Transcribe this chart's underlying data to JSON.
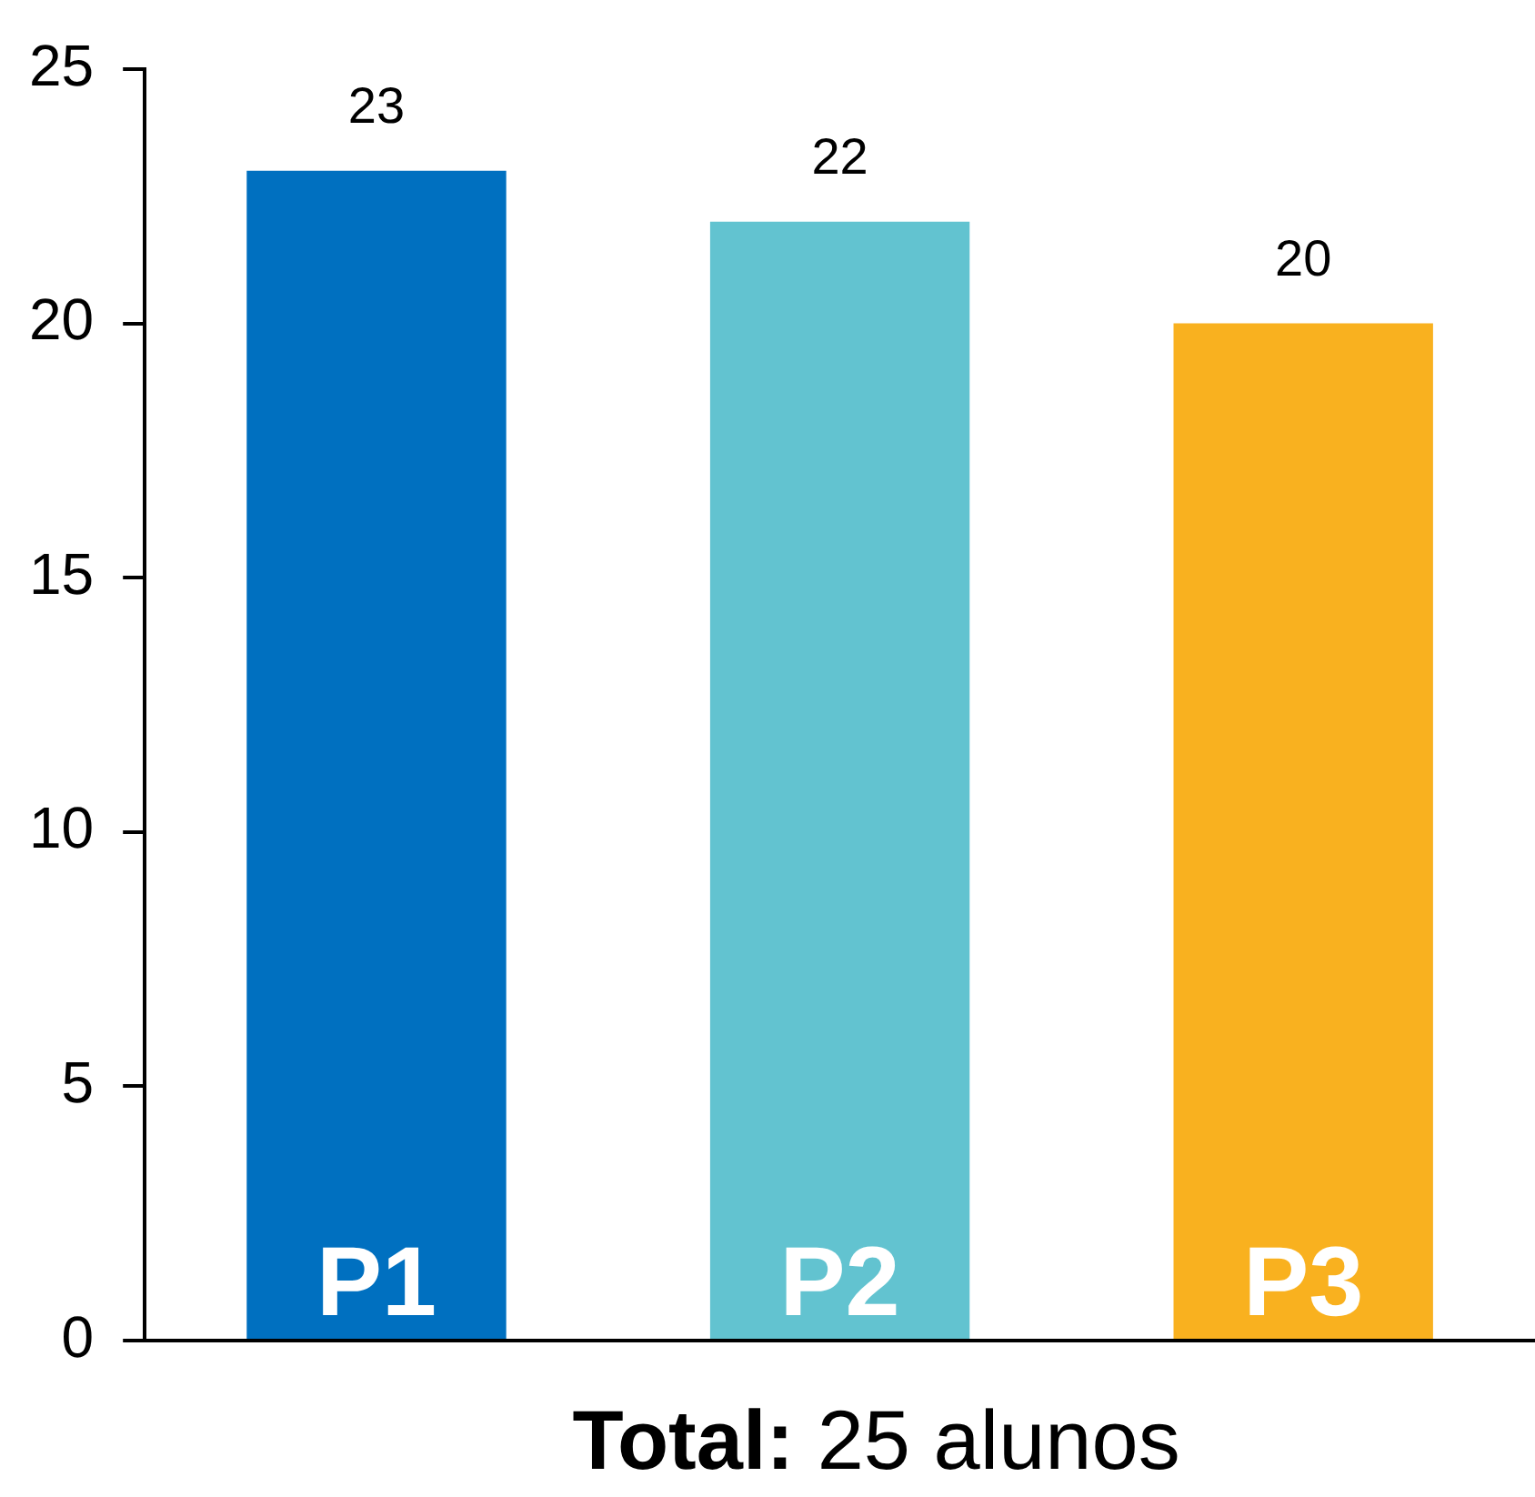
{
  "chart_data": {
    "type": "bar",
    "xlabel": "Total: 25 alunos",
    "categories": [
      "P1",
      "P2",
      "P3"
    ],
    "values": [
      23,
      22,
      20
    ],
    "colors": [
      "#0070c0",
      "#62c3d0",
      "#f9b11f"
    ],
    "ylim": [
      0,
      25
    ],
    "yticks": [
      0,
      5,
      10,
      15,
      20,
      25
    ],
    "grid": false,
    "legend": false,
    "data_labels": true
  }
}
